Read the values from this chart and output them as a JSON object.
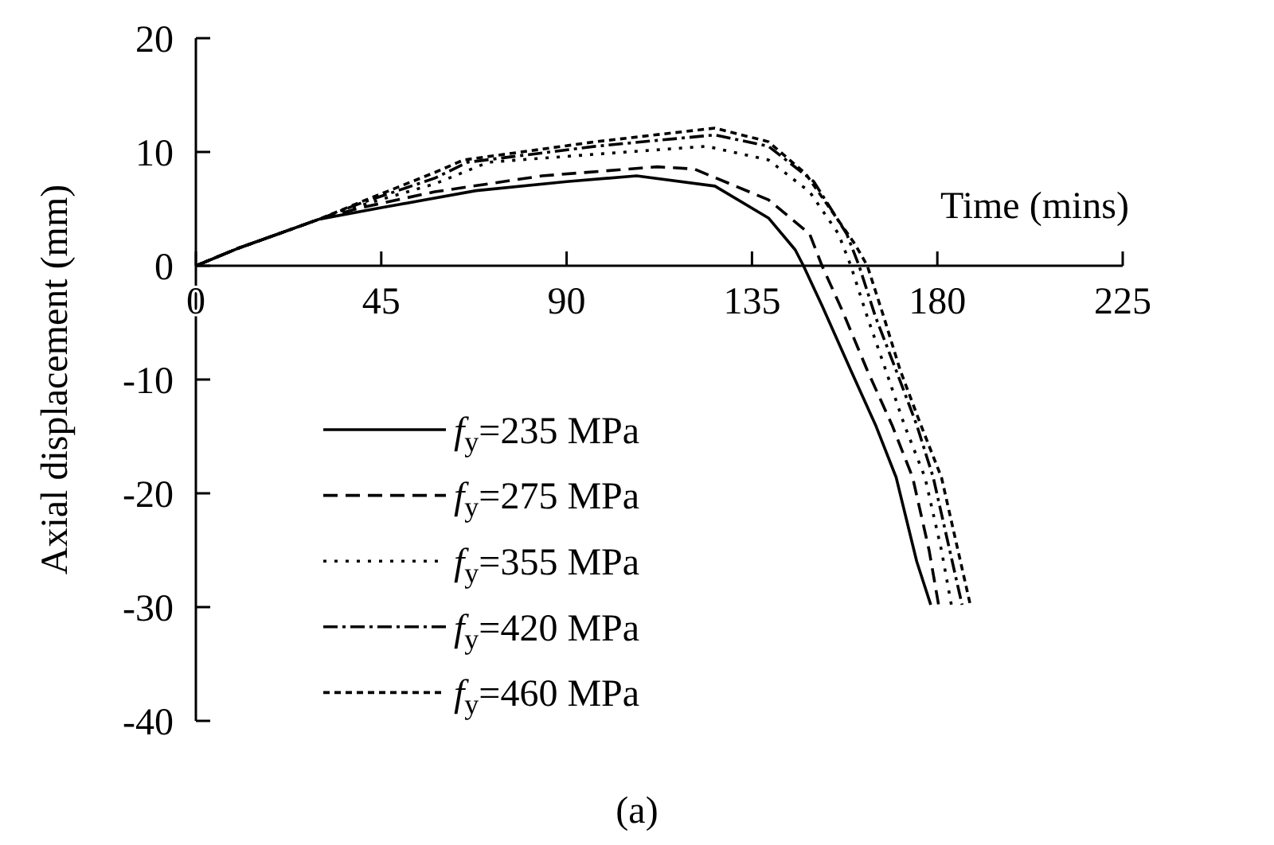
{
  "chart_data": {
    "type": "line",
    "xlabel": "Time (mins)",
    "ylabel": "Axial displacement (mm)",
    "xlim": [
      0,
      225
    ],
    "ylim": [
      -40,
      20
    ],
    "xticks": [
      0,
      45,
      90,
      135,
      180,
      225
    ],
    "yticks": [
      -40,
      -30,
      -20,
      -10,
      0,
      10,
      20
    ],
    "legend": "bottom left",
    "grid": false,
    "annotations": [
      "(a)"
    ],
    "series": [
      {
        "name": "f$_{y}$=235 MPa",
        "color": "#000000",
        "line_style": "solid",
        "x": [
          0,
          10,
          20,
          30,
          45,
          68,
          90,
          107,
          126,
          139,
          145.5,
          147.5,
          152,
          159,
          165,
          170,
          175,
          178.4
        ],
        "values": [
          0,
          1.5,
          2.8,
          4.1,
          5.1,
          6.6,
          7.4,
          7.9,
          7.0,
          4.2,
          1.4,
          0,
          -3.5,
          -9.2,
          -14,
          -18.6,
          -26,
          -29.8
        ]
      },
      {
        "name": "f$_{y}$=275 MPa",
        "color": "#000000",
        "line_style": "dashed",
        "x": [
          0,
          10,
          20,
          30,
          40,
          58,
          84,
          112,
          121,
          139,
          149,
          152,
          157,
          163,
          169,
          174,
          178,
          180.3
        ],
        "values": [
          0,
          1.5,
          2.8,
          4.1,
          5.1,
          6.5,
          7.9,
          8.7,
          8.5,
          5.8,
          2.8,
          0,
          -4,
          -9.2,
          -14,
          -18.6,
          -25,
          -29.8
        ]
      },
      {
        "name": "f$_{y}$=355 MPa",
        "color": "#000000",
        "line_style": "dotted",
        "x": [
          0,
          10,
          20,
          30,
          40,
          58,
          71,
          97,
          124,
          139,
          149,
          156,
          159,
          163,
          167.5,
          172,
          177,
          181,
          183.4
        ],
        "values": [
          0,
          1.5,
          2.8,
          4.1,
          5.3,
          7.2,
          9.1,
          9.8,
          10.5,
          9.3,
          6.5,
          2.8,
          0,
          -4.5,
          -9.2,
          -14,
          -18.6,
          -25,
          -29.8
        ]
      },
      {
        "name": "f$_{y}$=420 MPa",
        "color": "#000000",
        "line_style": "dashdot",
        "x": [
          0,
          10,
          20,
          30,
          40,
          58,
          66,
          97,
          126,
          139,
          150,
          158,
          161,
          165,
          170,
          175,
          179,
          183,
          186
        ],
        "values": [
          0,
          1.5,
          2.8,
          4.1,
          5.5,
          7.7,
          9.1,
          10.5,
          11.5,
          10.5,
          7.4,
          2.8,
          0,
          -4.5,
          -9.2,
          -14,
          -18.6,
          -25,
          -29.8
        ]
      },
      {
        "name": "f$_{y}$=460 MPa",
        "color": "#000000",
        "line_style": "densely dashed",
        "x": [
          0,
          10,
          20,
          30,
          40,
          58,
          65,
          97,
          126,
          139,
          148,
          160,
          163,
          167,
          171,
          176,
          181,
          185,
          188
        ],
        "values": [
          0,
          1.5,
          2.8,
          4.1,
          5.6,
          8.2,
          9.3,
          10.9,
          12.1,
          10.9,
          8.1,
          1.9,
          0,
          -4.5,
          -9.2,
          -14,
          -18.6,
          -25,
          -29.8
        ]
      }
    ]
  }
}
